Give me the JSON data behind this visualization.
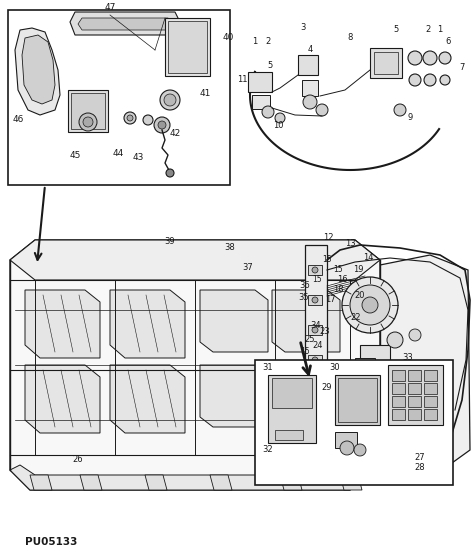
{
  "bg_color": "#ffffff",
  "line_color": "#1a1a1a",
  "figsize": [
    4.74,
    5.53
  ],
  "dpi": 100,
  "watermark": "PU05133"
}
